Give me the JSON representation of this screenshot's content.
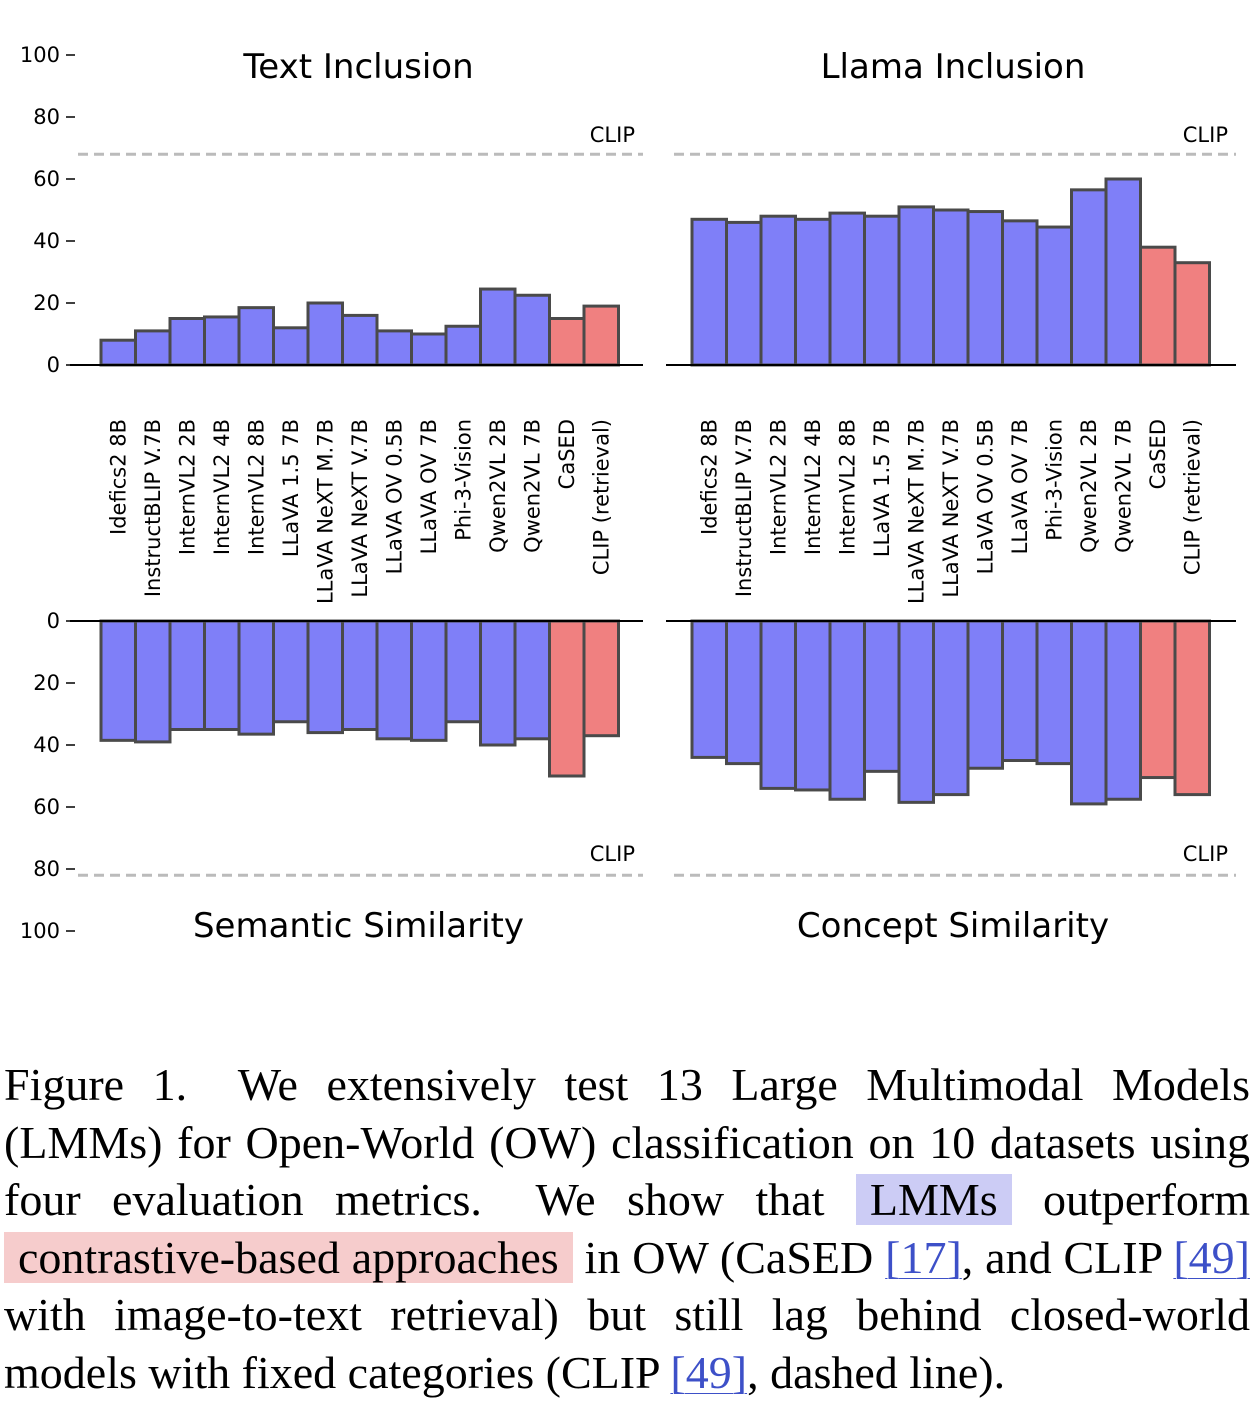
{
  "chart_data": [
    {
      "type": "bar",
      "title": "Text Inclusion",
      "direction": "up",
      "categories": [
        "Idefics2 8B",
        "InstructBLIP V.7B",
        "InternVL2 2B",
        "InternVL2 4B",
        "InternVL2 8B",
        "LLaVA 1.5 7B",
        "LLaVA NeXT M.7B",
        "LLaVA NeXT V.7B",
        "LLaVA OV 0.5B",
        "LLaVA OV 7B",
        "Phi-3-Vision",
        "Qwen2VL 2B",
        "Qwen2VL 7B",
        "CaSED",
        "CLIP (retrieval)"
      ],
      "values": [
        8,
        11,
        15,
        15.5,
        18.5,
        12,
        20,
        16,
        11,
        10,
        12.5,
        24.5,
        22.5,
        15,
        19
      ],
      "groups": [
        "LMM",
        "LMM",
        "LMM",
        "LMM",
        "LMM",
        "LMM",
        "LMM",
        "LMM",
        "LMM",
        "LMM",
        "LMM",
        "LMM",
        "LMM",
        "contrastive",
        "contrastive"
      ],
      "reference_line": {
        "label": "CLIP",
        "value": 68
      },
      "ylim": [
        0,
        100
      ],
      "yticks": [
        "0",
        "20",
        "40",
        "60",
        "80",
        "100 "
      ]
    },
    {
      "type": "bar",
      "title": "Llama Inclusion",
      "direction": "up",
      "categories": [
        "Idefics2 8B",
        "InstructBLIP V.7B",
        "InternVL2 2B",
        "InternVL2 4B",
        "InternVL2 8B",
        "LLaVA 1.5 7B",
        "LLaVA NeXT M.7B",
        "LLaVA NeXT V.7B",
        "LLaVA OV 0.5B",
        "LLaVA OV 7B",
        "Phi-3-Vision",
        "Qwen2VL 2B",
        "Qwen2VL 7B",
        "CaSED",
        "CLIP (retrieval)"
      ],
      "values": [
        47,
        46,
        48,
        47,
        49,
        48,
        51,
        50,
        49.5,
        46.5,
        44.5,
        56.5,
        60,
        38,
        33
      ],
      "groups": [
        "LMM",
        "LMM",
        "LMM",
        "LMM",
        "LMM",
        "LMM",
        "LMM",
        "LMM",
        "LMM",
        "LMM",
        "LMM",
        "LMM",
        "LMM",
        "contrastive",
        "contrastive"
      ],
      "reference_line": {
        "label": "CLIP",
        "value": 68
      },
      "ylim": [
        0,
        100
      ]
    },
    {
      "type": "bar",
      "title": "Semantic Similarity",
      "direction": "down",
      "categories": [
        "Idefics2 8B",
        "InstructBLIP V.7B",
        "InternVL2 2B",
        "InternVL2 4B",
        "InternVL2 8B",
        "LLaVA 1.5 7B",
        "LLaVA NeXT M.7B",
        "LLaVA NeXT V.7B",
        "LLaVA OV 0.5B",
        "LLaVA OV 7B",
        "Phi-3-Vision",
        "Qwen2VL 2B",
        "Qwen2VL 7B",
        "CaSED",
        "CLIP (retrieval)"
      ],
      "values": [
        38.5,
        39,
        35,
        35,
        36.5,
        32.5,
        36,
        35,
        38,
        38.5,
        32.5,
        40,
        38,
        50,
        37
      ],
      "groups": [
        "LMM",
        "LMM",
        "LMM",
        "LMM",
        "LMM",
        "LMM",
        "LMM",
        "LMM",
        "LMM",
        "LMM",
        "LMM",
        "LMM",
        "LMM",
        "contrastive",
        "contrastive"
      ],
      "reference_line": {
        "label": "CLIP",
        "value": 82
      },
      "ylim": [
        0,
        100
      ],
      "yticks": [
        "0",
        "20",
        "40",
        "60",
        "80",
        "100 "
      ]
    },
    {
      "type": "bar",
      "title": "Concept Similarity",
      "direction": "down",
      "categories": [
        "Idefics2 8B",
        "InstructBLIP V.7B",
        "InternVL2 2B",
        "InternVL2 4B",
        "InternVL2 8B",
        "LLaVA 1.5 7B",
        "LLaVA NeXT M.7B",
        "LLaVA NeXT V.7B",
        "LLaVA OV 0.5B",
        "LLaVA OV 7B",
        "Phi-3-Vision",
        "Qwen2VL 2B",
        "Qwen2VL 7B",
        "CaSED",
        "CLIP (retrieval)"
      ],
      "values": [
        44,
        46,
        54,
        54.5,
        57.5,
        48.5,
        58.5,
        56,
        47.5,
        45,
        46,
        59,
        57.5,
        50.5,
        56
      ],
      "groups": [
        "LMM",
        "LMM",
        "LMM",
        "LMM",
        "LMM",
        "LMM",
        "LMM",
        "LMM",
        "LMM",
        "LMM",
        "LMM",
        "LMM",
        "LMM",
        "contrastive",
        "contrastive"
      ],
      "reference_line": {
        "label": "CLIP",
        "value": 82
      },
      "ylim": [
        0,
        100
      ]
    }
  ],
  "colors": {
    "lmm_fill": "#7f7ff8",
    "contrastive_fill": "#f08080",
    "bar_edge": "#4a4a4a",
    "reference_line": "#bbbbbb"
  },
  "caption": {
    "text_before_lmms": "Figure 1.  We extensively test 13 Large Multimodal Models (LMMs) for Open-World (OW) classification on 10 datasets us­ing four evaluation metrics.  We show that ",
    "lmms_highlight": "LMMs",
    "text_after_lmms": " outper­form ",
    "contrastive_highlight": "contrastive-based approaches",
    "text_in_ow": " in OW (CaSED ",
    "ref_cased": "[17]",
    "text_and_clip": ", and CLIP ",
    "ref_clip_1": "[49]",
    "text_retrieval": " with image-to-text retrieval) but still lag behind closed-world models with fixed categories (CLIP ",
    "ref_clip_2": "[49]",
    "text_end": ", dashed line)."
  }
}
